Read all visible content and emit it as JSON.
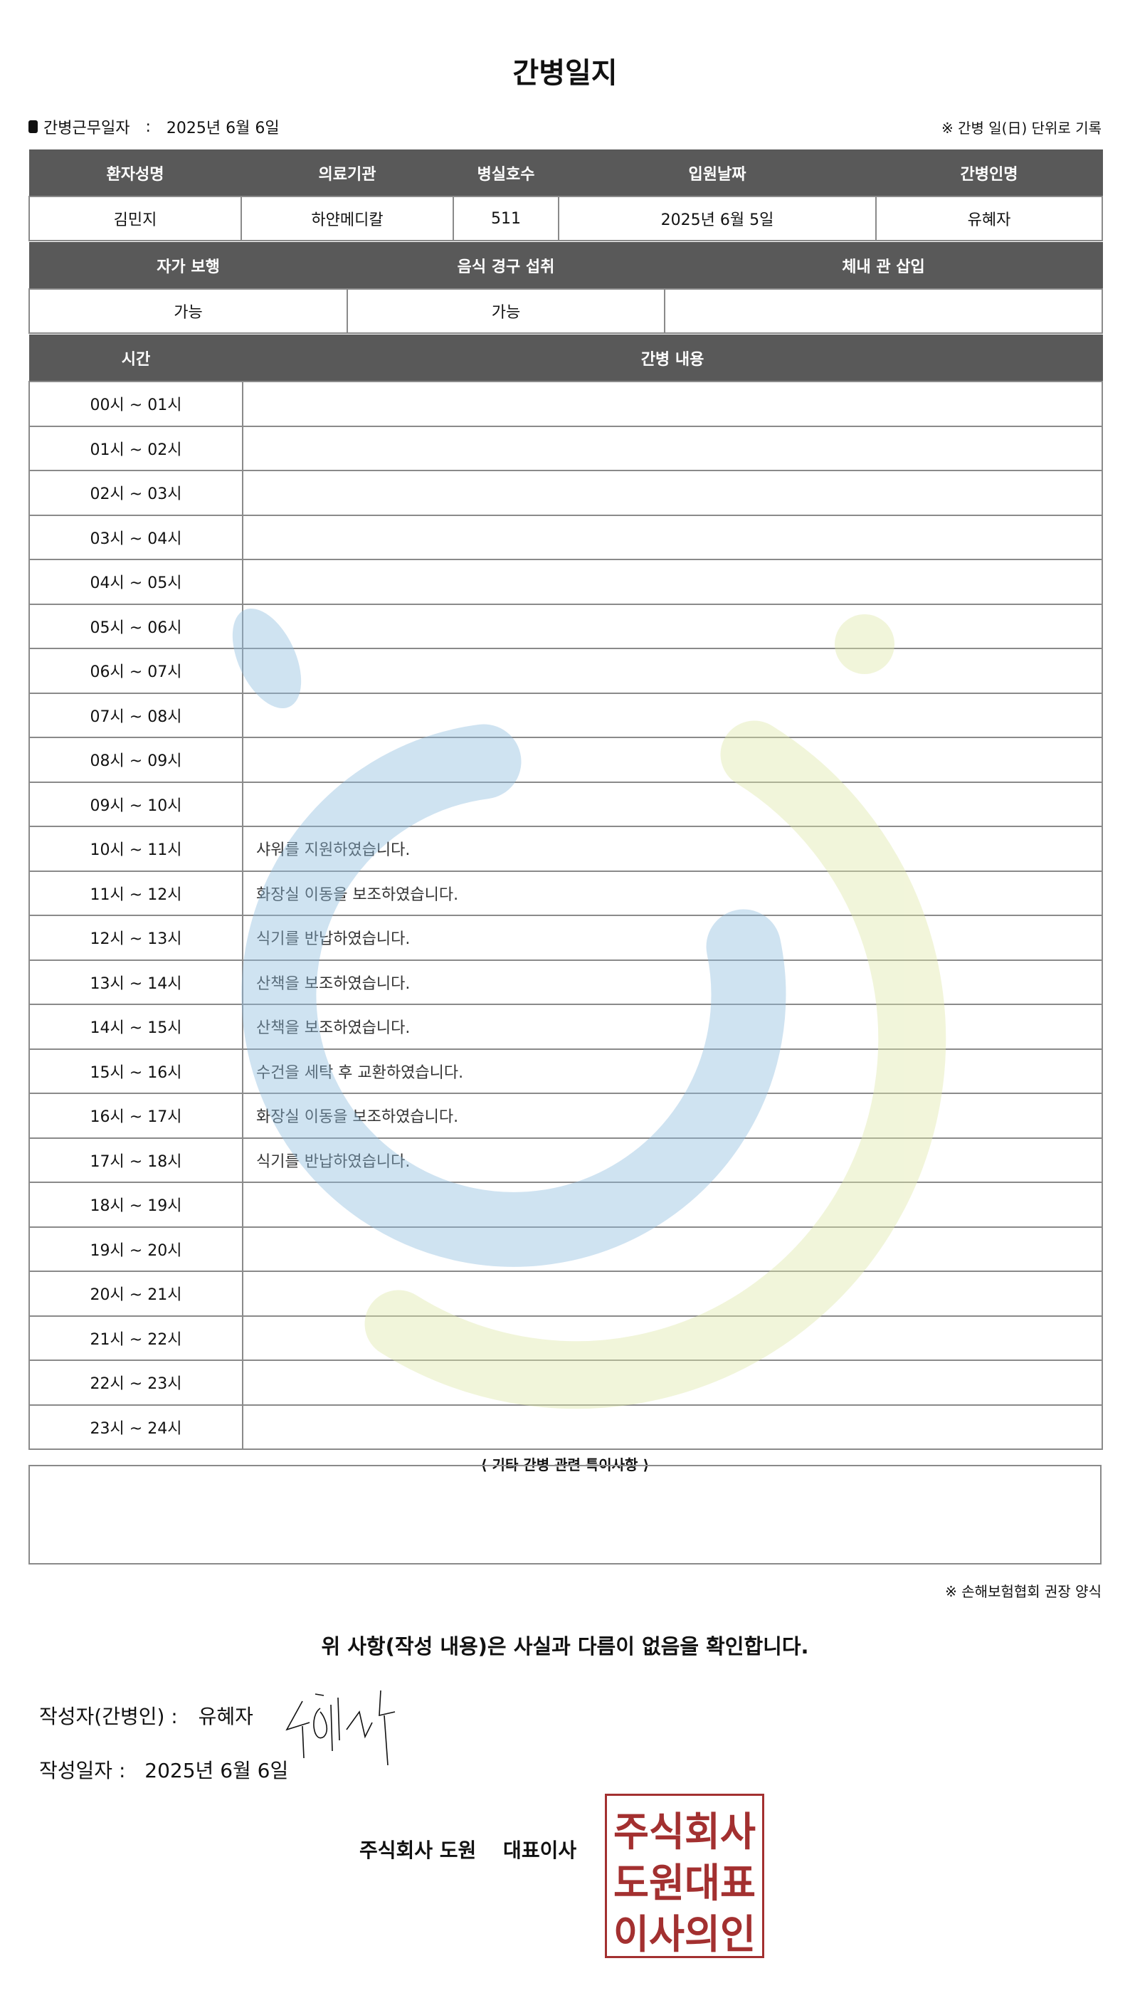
{
  "title": "간병일지",
  "work_date_label": "간병근무일자",
  "work_date_sep": ":",
  "work_date": "2025년 6월 6일",
  "daily_note": "※ 간병 일(日) 단위로 기록",
  "patient_table": {
    "headers": [
      "환자성명",
      "의료기관",
      "병실호수",
      "입원날짜",
      "간병인명"
    ],
    "values": [
      "김민지",
      "하얀메디칼",
      "511",
      "2025년 6월 5일",
      "유혜자"
    ]
  },
  "status_table": {
    "headers": [
      "자가 보행",
      "음식 경구 섭취",
      "체내 관 삽입"
    ],
    "values": [
      "가능",
      "가능",
      ""
    ]
  },
  "log_table": {
    "headers": [
      "시간",
      "간병 내용"
    ],
    "rows": [
      {
        "time": "00시 ~ 01시",
        "content": ""
      },
      {
        "time": "01시 ~ 02시",
        "content": ""
      },
      {
        "time": "02시 ~ 03시",
        "content": ""
      },
      {
        "time": "03시 ~ 04시",
        "content": ""
      },
      {
        "time": "04시 ~ 05시",
        "content": ""
      },
      {
        "time": "05시 ~ 06시",
        "content": ""
      },
      {
        "time": "06시 ~ 07시",
        "content": ""
      },
      {
        "time": "07시 ~ 08시",
        "content": ""
      },
      {
        "time": "08시 ~ 09시",
        "content": ""
      },
      {
        "time": "09시 ~ 10시",
        "content": ""
      },
      {
        "time": "10시 ~ 11시",
        "content": "샤워를 지원하였습니다."
      },
      {
        "time": "11시 ~ 12시",
        "content": "화장실 이동을 보조하였습니다."
      },
      {
        "time": "12시 ~ 13시",
        "content": "식기를 반납하였습니다."
      },
      {
        "time": "13시 ~ 14시",
        "content": "산책을 보조하였습니다."
      },
      {
        "time": "14시 ~ 15시",
        "content": "산책을 보조하였습니다."
      },
      {
        "time": "15시 ~ 16시",
        "content": "수건을 세탁 후 교환하였습니다."
      },
      {
        "time": "16시 ~ 17시",
        "content": "화장실 이동을 보조하였습니다."
      },
      {
        "time": "17시 ~ 18시",
        "content": "식기를 반납하였습니다."
      },
      {
        "time": "18시 ~ 19시",
        "content": ""
      },
      {
        "time": "19시 ~ 20시",
        "content": ""
      },
      {
        "time": "20시 ~ 21시",
        "content": ""
      },
      {
        "time": "21시 ~ 22시",
        "content": ""
      },
      {
        "time": "22시 ~ 23시",
        "content": ""
      },
      {
        "time": "23시 ~ 24시",
        "content": ""
      }
    ]
  },
  "special_notes_heading": "⟨ 기타 간병 관련 특이사항 ⟩",
  "special_notes": "",
  "association_note": "※ 손해보험협회 권장 양식",
  "confirmation": "위 사항(작성 내용)은 사실과 다름이 없음을 확인합니다.",
  "author_label": "작성자(간병인) :",
  "author_name": "유혜자",
  "written_date_label": "작성일자 :",
  "written_date": "2025년 6월 6일",
  "company": "주식회사 도원　 대표이사",
  "seal_text": [
    "주식회사",
    "도원대표",
    "이사의인"
  ],
  "colors": {
    "header_bg": "#595959",
    "seal": "#a33030",
    "watermark_blue": "#7fb3dc",
    "watermark_green": "#d8e49a"
  }
}
